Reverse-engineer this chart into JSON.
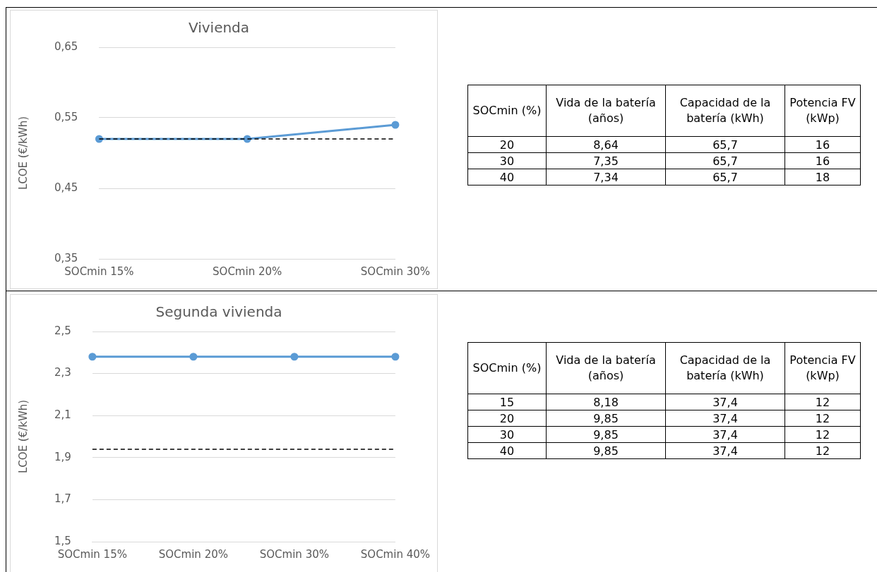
{
  "chart_data": [
    {
      "type": "line",
      "title": "Vivienda",
      "ylabel": "LCOE (€/kWh)",
      "categories": [
        "SOCmin 15%",
        "SOCmin 20%",
        "SOCmin 30%"
      ],
      "series": [
        {
          "color": "#5b9bd5",
          "values": [
            0.52,
            0.52,
            0.54
          ]
        }
      ],
      "ylim": [
        0.35,
        0.65
      ],
      "yticks": [
        {
          "value": 0.35,
          "label": "0,35"
        },
        {
          "value": 0.45,
          "label": "0,45"
        },
        {
          "value": 0.55,
          "label": "0,55"
        },
        {
          "value": 0.65,
          "label": "0,65"
        }
      ],
      "ref_lines": [
        {
          "axis": "y",
          "value": 0.52,
          "color": "#000000",
          "line_style": "dashed"
        }
      ],
      "grid": "y",
      "marker": "circle"
    },
    {
      "type": "other",
      "categories": [
        "SOCmin (%)",
        "Vida de la batería (años)",
        "Capacidad de la batería (kWh)",
        "Potencia FV (kWp)"
      ],
      "annotations": [
        "20",
        "8,64",
        "65,7",
        "16",
        "30",
        "7,35",
        "65,7",
        "16",
        "40",
        "7,34",
        "65,7",
        "18"
      ]
    },
    {
      "type": "line",
      "title": "Segunda vivienda",
      "ylabel": "LCOE (€/kWh)",
      "categories": [
        "SOCmin 15%",
        "SOCmin 20%",
        "SOCmin 30%",
        "SOCmin 40%"
      ],
      "series": [
        {
          "color": "#5b9bd5",
          "values": [
            2.38,
            2.38,
            2.38,
            2.38
          ]
        }
      ],
      "ylim": [
        1.5,
        2.5
      ],
      "yticks": [
        {
          "value": 1.5,
          "label": "1,5"
        },
        {
          "value": 1.7,
          "label": "1,7"
        },
        {
          "value": 1.9,
          "label": "1,9"
        },
        {
          "value": 2.1,
          "label": "2,1"
        },
        {
          "value": 2.3,
          "label": "2,3"
        },
        {
          "value": 2.5,
          "label": "2,5"
        }
      ],
      "ref_lines": [
        {
          "axis": "y",
          "value": 1.94,
          "color": "#000000",
          "line_style": "dashed"
        }
      ],
      "grid": "y",
      "marker": "circle"
    },
    {
      "type": "other",
      "categories": [
        "SOCmin (%)",
        "Vida de la batería (años)",
        "Capacidad de la batería (kWh)",
        "Potencia FV (kWp)"
      ],
      "annotations": [
        "15",
        "8,18",
        "37,4",
        "12",
        "20",
        "9,85",
        "37,4",
        "12",
        "30",
        "9,85",
        "37,4",
        "12",
        "40",
        "9,85",
        "37,4",
        "12"
      ]
    }
  ]
}
